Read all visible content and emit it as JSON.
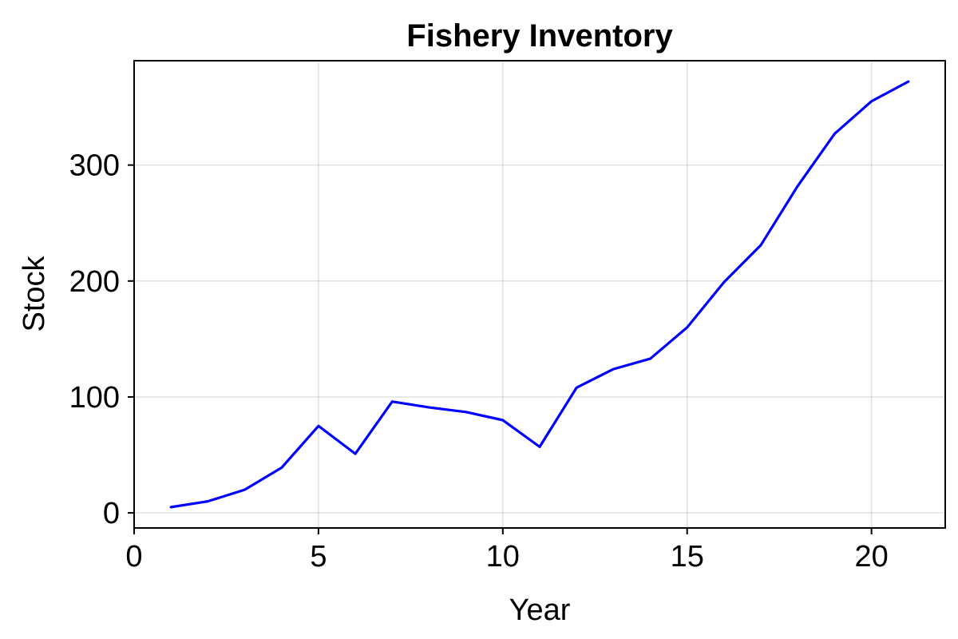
{
  "chart_data": {
    "type": "line",
    "title": "Fishery Inventory",
    "xlabel": "Year",
    "ylabel": "Stock",
    "xlim": [
      0,
      22
    ],
    "ylim": [
      -13,
      390
    ],
    "xticks": [
      0,
      5,
      10,
      15,
      20
    ],
    "yticks": [
      0,
      100,
      200,
      300
    ],
    "grid": true,
    "series": [
      {
        "color": "#0000ff",
        "x": [
          1,
          2,
          3,
          4,
          5,
          6,
          7,
          8,
          9,
          10,
          11,
          12,
          13,
          14,
          15,
          16,
          17,
          18,
          19,
          20,
          21
        ],
        "y": [
          5,
          10,
          20,
          39,
          75,
          51,
          96,
          91,
          87,
          80,
          57,
          108,
          124,
          133,
          160,
          199,
          231,
          282,
          327,
          355,
          372
        ]
      }
    ]
  }
}
